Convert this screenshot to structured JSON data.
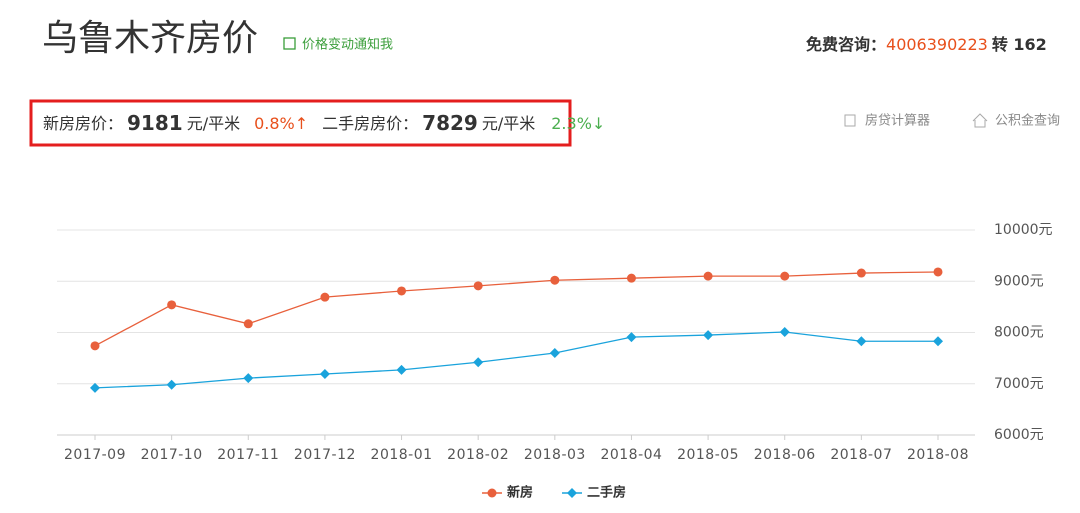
{
  "header": {
    "title": "乌鲁木齐房价",
    "notify": "价格变动通知我",
    "consult_label": "免费咨询：",
    "phone": "4006390223",
    "ext": "转 162"
  },
  "prices": {
    "new_label": "新房房价：",
    "new_price": "9181",
    "new_unit": "元/平米",
    "new_change": "0.8%↑",
    "second_label": "二手房房价：",
    "second_price": "7829",
    "second_unit": "元/平米",
    "second_change": "2.3%↓"
  },
  "tools": [
    "房贷计算器",
    "公积金查询"
  ],
  "chart_data": {
    "type": "line",
    "categories": [
      "2017-09",
      "2017-10",
      "2017-11",
      "2017-12",
      "2018-01",
      "2018-02",
      "2018-03",
      "2018-04",
      "2018-05",
      "2018-06",
      "2018-07",
      "2018-08"
    ],
    "series": [
      {
        "name": "新房",
        "color": "#e8603c",
        "values": [
          7740,
          8540,
          8170,
          8690,
          8810,
          8910,
          9020,
          9060,
          9100,
          9100,
          9160,
          9181
        ]
      },
      {
        "name": "二手房",
        "color": "#1aa3dc",
        "values": [
          6920,
          6980,
          7110,
          7190,
          7270,
          7420,
          7600,
          7910,
          7950,
          8010,
          7830,
          7829
        ]
      }
    ],
    "ylim": [
      6000,
      10000
    ],
    "yticks": [
      {
        "value": 6000,
        "label": "6000元"
      },
      {
        "value": 7000,
        "label": "7000元"
      },
      {
        "value": 8000,
        "label": "8000元"
      },
      {
        "value": 9000,
        "label": "9000元"
      },
      {
        "value": 10000,
        "label": "10000元"
      }
    ],
    "grid": true,
    "legend": "bottom"
  }
}
